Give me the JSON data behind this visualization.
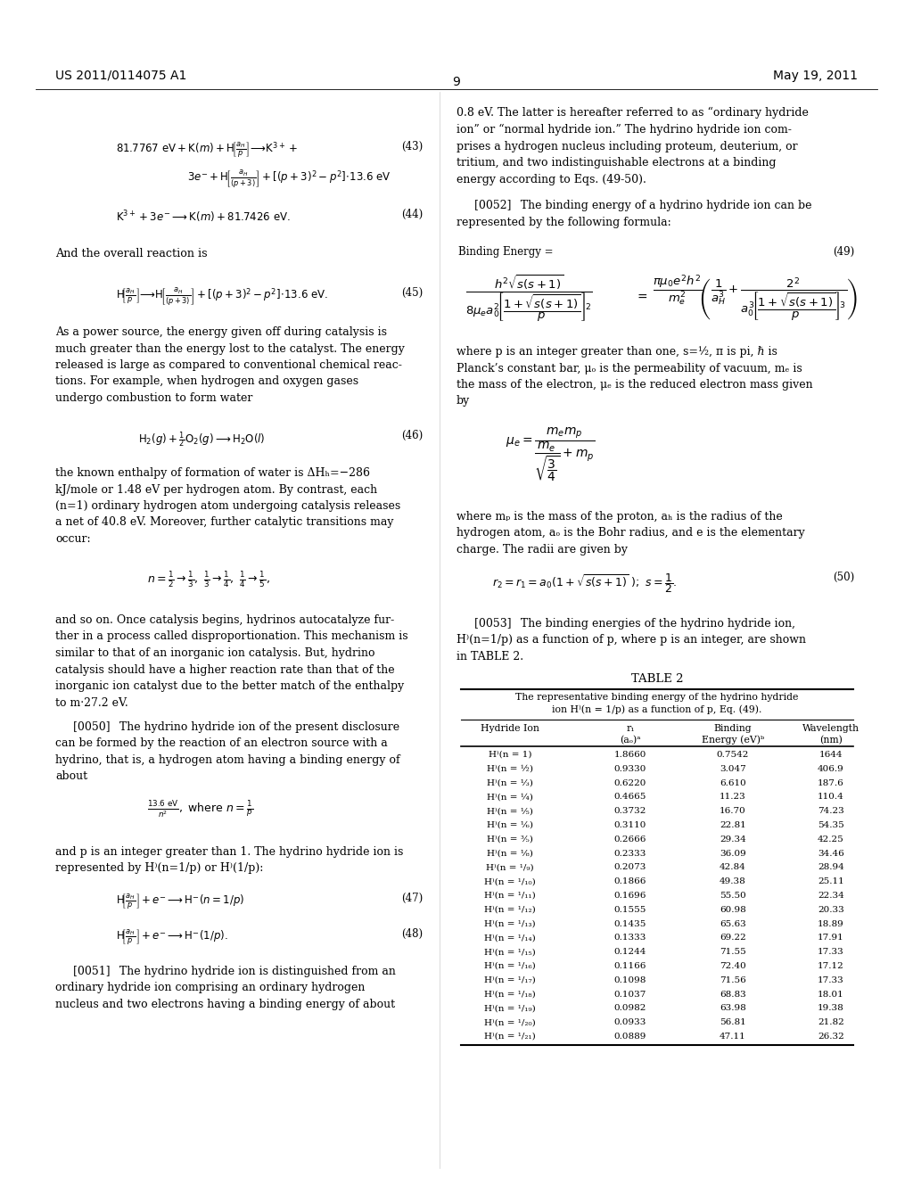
{
  "page_number": "9",
  "header_left": "US 2011/0114075 A1",
  "header_right": "May 19, 2011",
  "background_color": "#ffffff",
  "table2_data": [
    [
      "H⁾(n = 1)",
      "1.8660",
      "0.7542",
      "1644"
    ],
    [
      "H⁾(n = ½)",
      "0.9330",
      "3.047",
      "406.9"
    ],
    [
      "H⁾(n = ⅓)",
      "0.6220",
      "6.610",
      "187.6"
    ],
    [
      "H⁾(n = ¼)",
      "0.4665",
      "11.23",
      "110.4"
    ],
    [
      "H⁾(n = ⅕)",
      "0.3732",
      "16.70",
      "74.23"
    ],
    [
      "H⁾(n = ⅙)",
      "0.3110",
      "22.81",
      "54.35"
    ],
    [
      "H⁾(n = ⅗)",
      "0.2666",
      "29.34",
      "42.25"
    ],
    [
      "H⁾(n = ⅛)",
      "0.2333",
      "36.09",
      "34.46"
    ],
    [
      "H⁾(n = ¹/₉)",
      "0.2073",
      "42.84",
      "28.94"
    ],
    [
      "H⁾(n = ¹/₁₀)",
      "0.1866",
      "49.38",
      "25.11"
    ],
    [
      "H⁾(n = ¹/₁₁)",
      "0.1696",
      "55.50",
      "22.34"
    ],
    [
      "H⁾(n = ¹/₁₂)",
      "0.1555",
      "60.98",
      "20.33"
    ],
    [
      "H⁾(n = ¹/₁₃)",
      "0.1435",
      "65.63",
      "18.89"
    ],
    [
      "H⁾(n = ¹/₁₄)",
      "0.1333",
      "69.22",
      "17.91"
    ],
    [
      "H⁾(n = ¹/₁₅)",
      "0.1244",
      "71.55",
      "17.33"
    ],
    [
      "H⁾(n = ¹/₁₆)",
      "0.1166",
      "72.40",
      "17.12"
    ],
    [
      "H⁾(n = ¹/₁₇)",
      "0.1098",
      "71.56",
      "17.33"
    ],
    [
      "H⁾(n = ¹/₁₈)",
      "0.1037",
      "68.83",
      "18.01"
    ],
    [
      "H⁾(n = ¹/₁₉)",
      "0.0982",
      "63.98",
      "19.38"
    ],
    [
      "H⁾(n = ¹/₂₀)",
      "0.0933",
      "56.81",
      "21.82"
    ],
    [
      "H⁾(n = ¹/₂₁)",
      "0.0889",
      "47.11",
      "26.32"
    ]
  ]
}
